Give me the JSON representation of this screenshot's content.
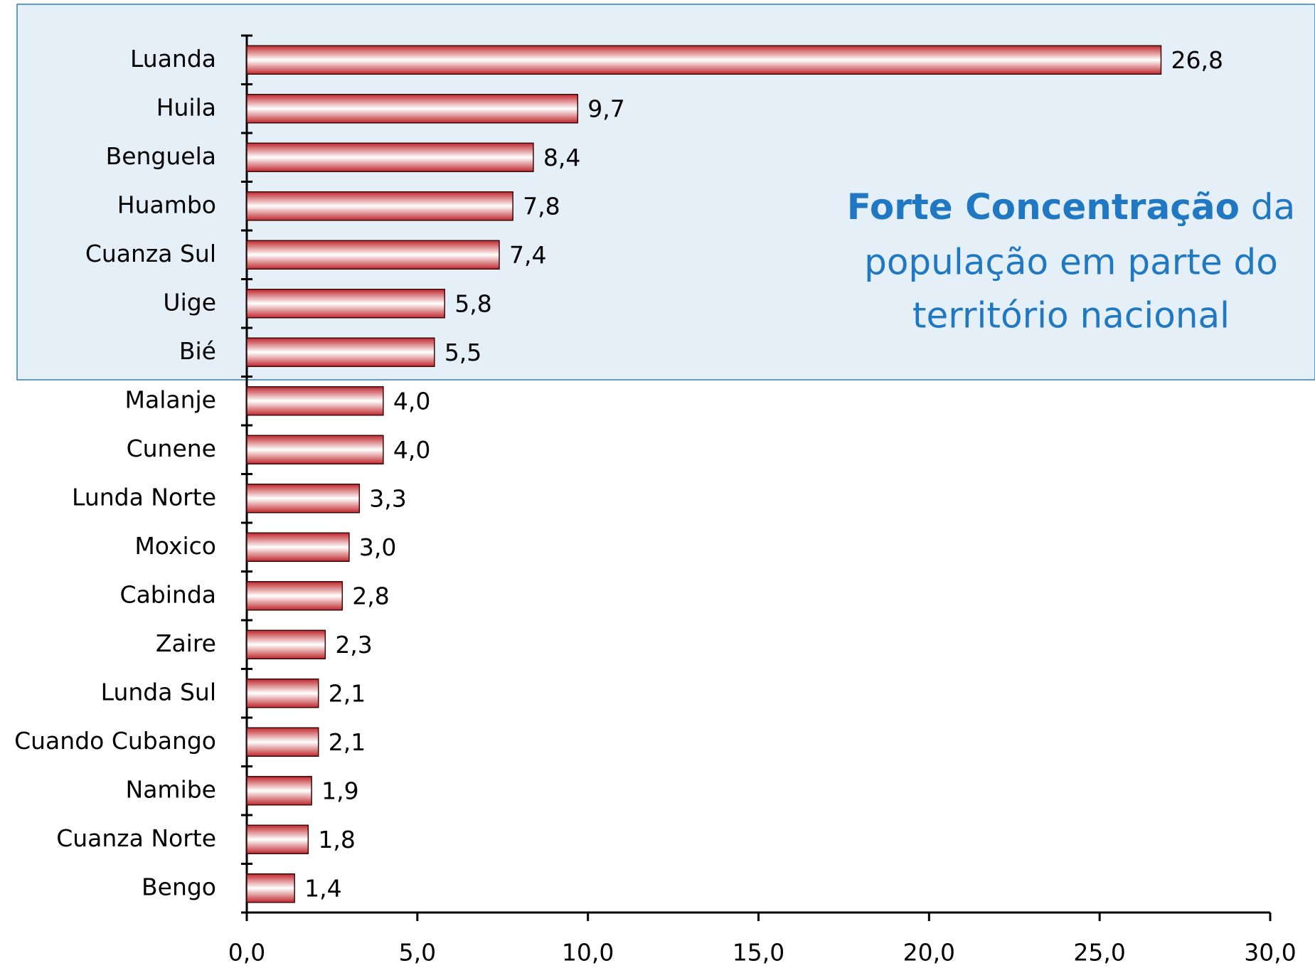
{
  "chart_data": {
    "type": "bar",
    "orientation": "horizontal",
    "categories": [
      "Luanda",
      "Huila",
      "Benguela",
      "Huambo",
      "Cuanza Sul",
      "Uige",
      "Bié",
      "Malanje",
      "Cunene",
      "Lunda Norte",
      "Moxico",
      "Cabinda",
      "Zaire",
      "Lunda Sul",
      "Cuando Cubango",
      "Namibe",
      "Cuanza Norte",
      "Bengo"
    ],
    "values": [
      26.8,
      9.7,
      8.4,
      7.8,
      7.4,
      5.8,
      5.5,
      4.0,
      4.0,
      3.3,
      3.0,
      2.8,
      2.3,
      2.1,
      2.1,
      1.9,
      1.8,
      1.4
    ],
    "value_labels": [
      "26,8",
      "9,7",
      "8,4",
      "7,8",
      "7,4",
      "5,8",
      "5,5",
      "4,0",
      "4,0",
      "3,3",
      "3,0",
      "2,8",
      "2,3",
      "2,1",
      "2,1",
      "1,9",
      "1,8",
      "1,4"
    ],
    "color": "#c0282e",
    "xlim": [
      0,
      30
    ],
    "xticks": [
      {
        "value": 0,
        "label": "0,0"
      },
      {
        "value": 5,
        "label": "5,0"
      },
      {
        "value": 10,
        "label": "10,0"
      },
      {
        "value": 15,
        "label": "15,0"
      },
      {
        "value": 20,
        "label": "20,0"
      },
      {
        "value": 25,
        "label": "25,0"
      },
      {
        "value": 30,
        "label": "30,0"
      }
    ],
    "annotation": [
      "Forte Concentração",
      "da",
      "população em parte do",
      "território nacional"
    ]
  }
}
